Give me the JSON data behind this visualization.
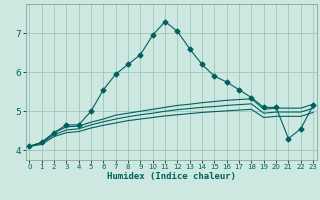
{
  "title": "",
  "xlabel": "Humidex (Indice chaleur)",
  "bg_color": "#cce8e0",
  "grid_color": "#9dc8bc",
  "line_color": "#006060",
  "x_ticks": [
    0,
    1,
    2,
    3,
    4,
    5,
    6,
    7,
    8,
    9,
    10,
    11,
    12,
    13,
    14,
    15,
    16,
    17,
    18,
    19,
    20,
    21,
    22,
    23
  ],
  "y_ticks": [
    4,
    5,
    6,
    7
  ],
  "xlim": [
    -0.3,
    23.3
  ],
  "ylim": [
    3.75,
    7.75
  ],
  "series1_x": [
    0,
    1,
    2,
    3,
    4,
    5,
    6,
    7,
    8,
    9,
    10,
    11,
    12,
    13,
    14,
    15,
    16,
    17,
    18,
    19,
    20,
    21,
    22,
    23
  ],
  "series1_y": [
    4.1,
    4.2,
    4.45,
    4.65,
    4.65,
    5.0,
    5.55,
    5.95,
    6.2,
    6.45,
    6.95,
    7.3,
    7.05,
    6.6,
    6.2,
    5.9,
    5.75,
    5.55,
    5.35,
    5.1,
    5.1,
    4.3,
    4.55,
    5.15
  ],
  "series2_x": [
    0,
    1,
    2,
    3,
    4,
    5,
    6,
    7,
    8,
    9,
    10,
    11,
    12,
    13,
    14,
    15,
    16,
    17,
    18,
    19,
    20,
    21,
    22,
    23
  ],
  "series2_y": [
    4.1,
    4.2,
    4.45,
    4.6,
    4.62,
    4.72,
    4.8,
    4.9,
    4.95,
    5.0,
    5.05,
    5.1,
    5.15,
    5.18,
    5.22,
    5.25,
    5.28,
    5.3,
    5.32,
    5.05,
    5.08,
    5.08,
    5.08,
    5.18
  ],
  "series3_x": [
    0,
    1,
    2,
    3,
    4,
    5,
    6,
    7,
    8,
    9,
    10,
    11,
    12,
    13,
    14,
    15,
    16,
    17,
    18,
    19,
    20,
    21,
    22,
    23
  ],
  "series3_y": [
    4.1,
    4.18,
    4.4,
    4.52,
    4.55,
    4.65,
    4.73,
    4.8,
    4.86,
    4.91,
    4.95,
    5.0,
    5.04,
    5.07,
    5.1,
    5.12,
    5.15,
    5.17,
    5.19,
    4.95,
    4.98,
    4.98,
    4.98,
    5.08
  ],
  "series4_x": [
    0,
    1,
    2,
    3,
    4,
    5,
    6,
    7,
    8,
    9,
    10,
    11,
    12,
    13,
    14,
    15,
    16,
    17,
    18,
    19,
    20,
    21,
    22,
    23
  ],
  "series4_y": [
    4.1,
    4.15,
    4.35,
    4.45,
    4.48,
    4.57,
    4.64,
    4.7,
    4.76,
    4.8,
    4.84,
    4.88,
    4.91,
    4.94,
    4.97,
    4.99,
    5.01,
    5.03,
    5.05,
    4.84,
    4.87,
    4.87,
    4.87,
    4.97
  ]
}
